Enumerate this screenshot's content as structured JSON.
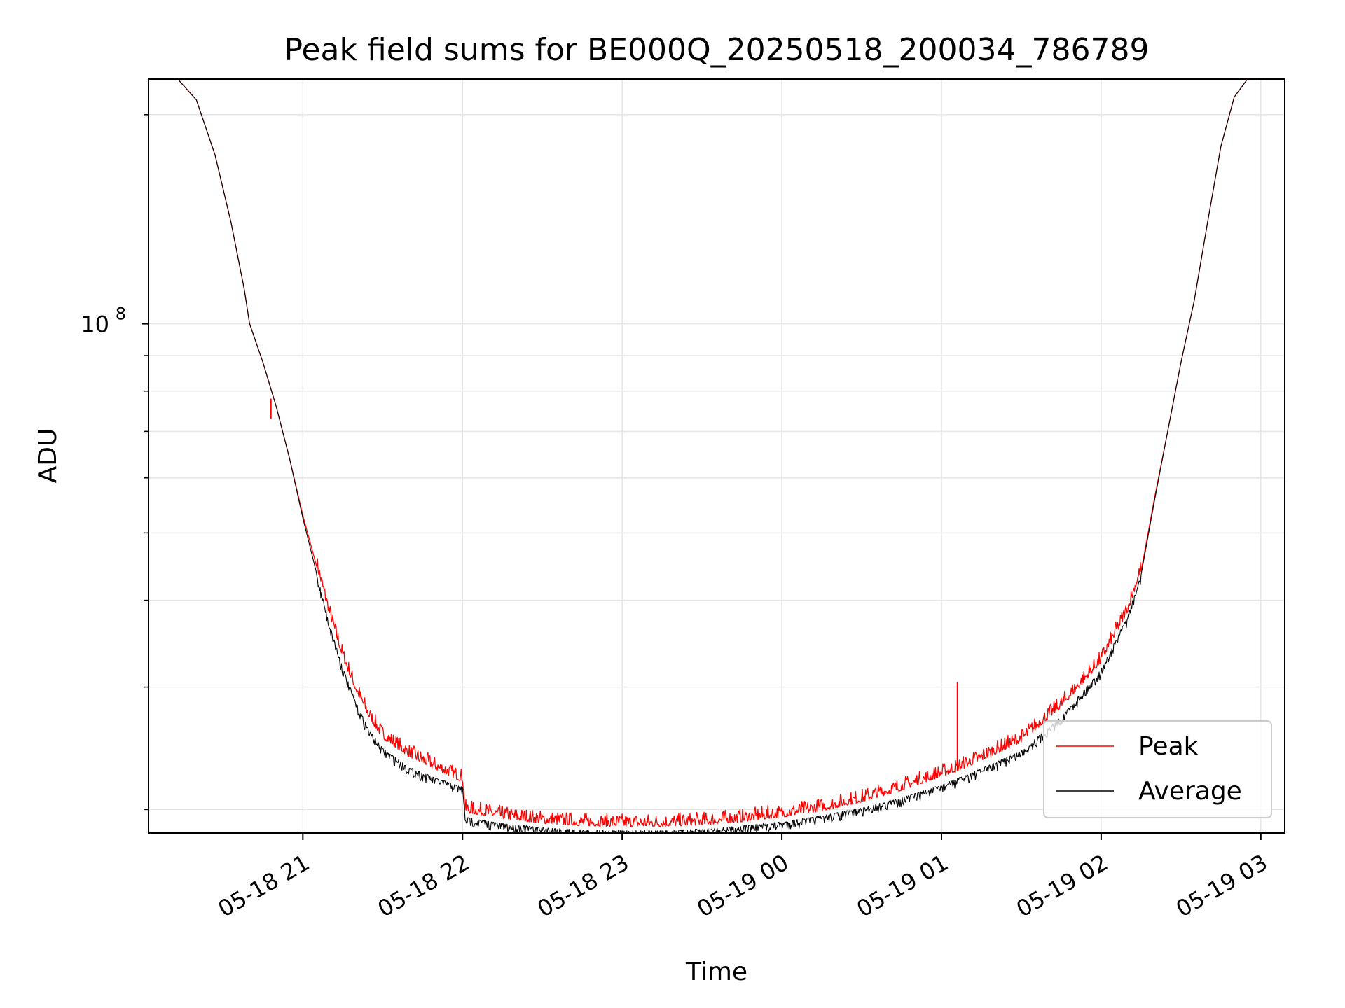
{
  "chart_data": {
    "type": "line",
    "title": "Peak field sums for BE000Q_20250518_200034_786789",
    "xlabel": "Time",
    "ylabel": "ADU",
    "y_scale": "log",
    "xlim": [
      "2025-05-18 20:02",
      "2025-05-19 03:09"
    ],
    "ylim": [
      18500000,
      225000000
    ],
    "x_ticks": [
      {
        "t": "2025-05-18 21:00",
        "label": "05-18 21"
      },
      {
        "t": "2025-05-18 22:00",
        "label": "05-18 22"
      },
      {
        "t": "2025-05-18 23:00",
        "label": "05-18 23"
      },
      {
        "t": "2025-05-19 00:00",
        "label": "05-19 00"
      },
      {
        "t": "2025-05-19 01:00",
        "label": "05-19 01"
      },
      {
        "t": "2025-05-19 02:00",
        "label": "05-19 02"
      },
      {
        "t": "2025-05-19 03:00",
        "label": "05-19 03"
      }
    ],
    "y_major_ticks": [
      {
        "value": 100000000,
        "label_base": "10",
        "label_exp": "8"
      }
    ],
    "y_minor_ticks": [
      20000000,
      30000000,
      40000000,
      50000000,
      60000000,
      70000000,
      80000000,
      90000000,
      200000000
    ],
    "grid": true,
    "legend_position": "lower right",
    "series": [
      {
        "name": "Peak",
        "color": "#ff0000",
        "noise_above": true,
        "points": [
          [
            "2025-05-18 20:02",
            225000000
          ],
          [
            "2025-05-18 20:13",
            225000000
          ],
          [
            "2025-05-18 20:20",
            210000000
          ],
          [
            "2025-05-18 20:27",
            175000000
          ],
          [
            "2025-05-18 20:33",
            140000000
          ],
          [
            "2025-05-18 20:38",
            112000000
          ],
          [
            "2025-05-18 20:40",
            100000000
          ],
          [
            "2025-05-18 20:45",
            88000000
          ],
          [
            "2025-05-18 20:50",
            76000000
          ],
          [
            "2025-05-18 20:55",
            64000000
          ],
          [
            "2025-05-18 21:00",
            53000000
          ],
          [
            "2025-05-18 21:05",
            45000000
          ],
          [
            "2025-05-18 21:10",
            38000000
          ],
          [
            "2025-05-18 21:15",
            33000000
          ],
          [
            "2025-05-18 21:20",
            29500000
          ],
          [
            "2025-05-18 21:25",
            27000000
          ],
          [
            "2025-05-18 21:30",
            25300000
          ],
          [
            "2025-05-18 21:40",
            23800000
          ],
          [
            "2025-05-18 21:50",
            22800000
          ],
          [
            "2025-05-18 21:59",
            22000000
          ],
          [
            "2025-05-18 22:00",
            21950000
          ],
          [
            "2025-05-18 22:01",
            19800000
          ],
          [
            "2025-05-18 22:15",
            19400000
          ],
          [
            "2025-05-18 22:30",
            19100000
          ],
          [
            "2025-05-18 22:45",
            18950000
          ],
          [
            "2025-05-18 23:00",
            18900000
          ],
          [
            "2025-05-18 23:15",
            18900000
          ],
          [
            "2025-05-18 23:30",
            19000000
          ],
          [
            "2025-05-18 23:45",
            19200000
          ],
          [
            "2025-05-19 00:00",
            19500000
          ],
          [
            "2025-05-19 00:15",
            19900000
          ],
          [
            "2025-05-19 00:30",
            20500000
          ],
          [
            "2025-05-19 00:45",
            21300000
          ],
          [
            "2025-05-19 01:00",
            22300000
          ],
          [
            "2025-05-19 01:06",
            22700000
          ],
          [
            "2025-05-19 01:15",
            23500000
          ],
          [
            "2025-05-19 01:30",
            25000000
          ],
          [
            "2025-05-19 01:45",
            28000000
          ],
          [
            "2025-05-19 02:00",
            32500000
          ],
          [
            "2025-05-19 02:10",
            38500000
          ],
          [
            "2025-05-19 02:15",
            44000000
          ],
          [
            "2025-05-19 02:20",
            56000000
          ],
          [
            "2025-05-19 02:25",
            70000000
          ],
          [
            "2025-05-19 02:30",
            88000000
          ],
          [
            "2025-05-19 02:35",
            108000000
          ],
          [
            "2025-05-19 02:40",
            140000000
          ],
          [
            "2025-05-19 02:45",
            180000000
          ],
          [
            "2025-05-19 02:50",
            212000000
          ],
          [
            "2025-05-19 02:55",
            225000000
          ],
          [
            "2025-05-19 03:09",
            225000000
          ]
        ],
        "spikes": [
          {
            "t": "2025-05-18 20:48",
            "peak": 78000000,
            "base": 73000000
          },
          {
            "t": "2025-05-19 01:06",
            "peak": 30500000,
            "base": 22700000
          }
        ]
      },
      {
        "name": "Average",
        "color": "#000000",
        "noise_above": false,
        "points": [
          [
            "2025-05-18 20:02",
            225000000
          ],
          [
            "2025-05-18 20:13",
            225000000
          ],
          [
            "2025-05-18 20:20",
            210000000
          ],
          [
            "2025-05-18 20:27",
            175000000
          ],
          [
            "2025-05-18 20:33",
            140000000
          ],
          [
            "2025-05-18 20:38",
            112000000
          ],
          [
            "2025-05-18 20:40",
            100000000
          ],
          [
            "2025-05-18 20:45",
            88000000
          ],
          [
            "2025-05-18 20:50",
            76000000
          ],
          [
            "2025-05-18 20:55",
            64000000
          ],
          [
            "2025-05-18 21:00",
            52500000
          ],
          [
            "2025-05-18 21:05",
            44000000
          ],
          [
            "2025-05-18 21:10",
            37000000
          ],
          [
            "2025-05-18 21:15",
            32000000
          ],
          [
            "2025-05-18 21:20",
            28500000
          ],
          [
            "2025-05-18 21:25",
            26000000
          ],
          [
            "2025-05-18 21:30",
            24500000
          ],
          [
            "2025-05-18 21:40",
            23000000
          ],
          [
            "2025-05-18 21:50",
            22200000
          ],
          [
            "2025-05-18 21:59",
            21600000
          ],
          [
            "2025-05-18 22:00",
            21550000
          ],
          [
            "2025-05-18 22:01",
            19500000
          ],
          [
            "2025-05-18 22:15",
            19100000
          ],
          [
            "2025-05-18 22:30",
            18850000
          ],
          [
            "2025-05-18 22:45",
            18700000
          ],
          [
            "2025-05-18 23:00",
            18650000
          ],
          [
            "2025-05-18 23:15",
            18650000
          ],
          [
            "2025-05-18 23:30",
            18750000
          ],
          [
            "2025-05-18 23:45",
            18950000
          ],
          [
            "2025-05-19 00:00",
            19200000
          ],
          [
            "2025-05-19 00:15",
            19600000
          ],
          [
            "2025-05-19 00:30",
            20100000
          ],
          [
            "2025-05-19 00:45",
            20800000
          ],
          [
            "2025-05-19 01:00",
            21700000
          ],
          [
            "2025-05-19 01:15",
            22900000
          ],
          [
            "2025-05-19 01:30",
            24300000
          ],
          [
            "2025-05-19 01:45",
            27200000
          ],
          [
            "2025-05-19 02:00",
            31800000
          ],
          [
            "2025-05-19 02:10",
            38000000
          ],
          [
            "2025-05-19 02:15",
            43500000
          ],
          [
            "2025-05-19 02:20",
            55500000
          ],
          [
            "2025-05-19 02:25",
            70000000
          ],
          [
            "2025-05-19 02:30",
            88000000
          ],
          [
            "2025-05-19 02:35",
            108000000
          ],
          [
            "2025-05-19 02:40",
            140000000
          ],
          [
            "2025-05-19 02:45",
            180000000
          ],
          [
            "2025-05-19 02:50",
            212000000
          ],
          [
            "2025-05-19 02:55",
            225000000
          ],
          [
            "2025-05-19 03:09",
            225000000
          ]
        ],
        "spikes": []
      }
    ]
  }
}
